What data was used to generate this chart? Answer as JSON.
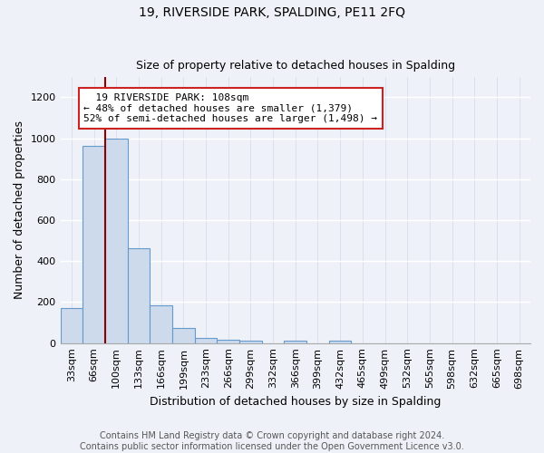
{
  "title": "19, RIVERSIDE PARK, SPALDING, PE11 2FQ",
  "subtitle": "Size of property relative to detached houses in Spalding",
  "xlabel": "Distribution of detached houses by size in Spalding",
  "ylabel": "Number of detached properties",
  "bar_labels": [
    "33sqm",
    "66sqm",
    "100sqm",
    "133sqm",
    "166sqm",
    "199sqm",
    "233sqm",
    "266sqm",
    "299sqm",
    "332sqm",
    "366sqm",
    "399sqm",
    "432sqm",
    "465sqm",
    "499sqm",
    "532sqm",
    "565sqm",
    "598sqm",
    "632sqm",
    "665sqm",
    "698sqm"
  ],
  "bar_values": [
    170,
    965,
    1000,
    465,
    185,
    75,
    25,
    15,
    10,
    0,
    10,
    0,
    10,
    0,
    0,
    0,
    0,
    0,
    0,
    0,
    0
  ],
  "bar_color": "#ccdaec",
  "bar_edge_color": "#6699cc",
  "ylim": [
    0,
    1300
  ],
  "yticks": [
    0,
    200,
    400,
    600,
    800,
    1000,
    1200
  ],
  "property_label": "19 RIVERSIDE PARK: 108sqm",
  "pct_smaller": 48,
  "n_smaller": 1379,
  "pct_larger": 52,
  "n_larger": 1498,
  "vline_bin_index": 2,
  "vline_color": "#8b0000",
  "annotation_box_facecolor": "#ffffff",
  "annotation_box_edgecolor": "#cc2222",
  "footer_line1": "Contains HM Land Registry data © Crown copyright and database right 2024.",
  "footer_line2": "Contains public sector information licensed under the Open Government Licence v3.0.",
  "background_color": "#eef2f8",
  "grid_color": "#d0d8e8",
  "title_fontsize": 10,
  "subtitle_fontsize": 9,
  "axis_label_fontsize": 9,
  "tick_fontsize": 8,
  "annotation_fontsize": 8,
  "footer_fontsize": 7
}
